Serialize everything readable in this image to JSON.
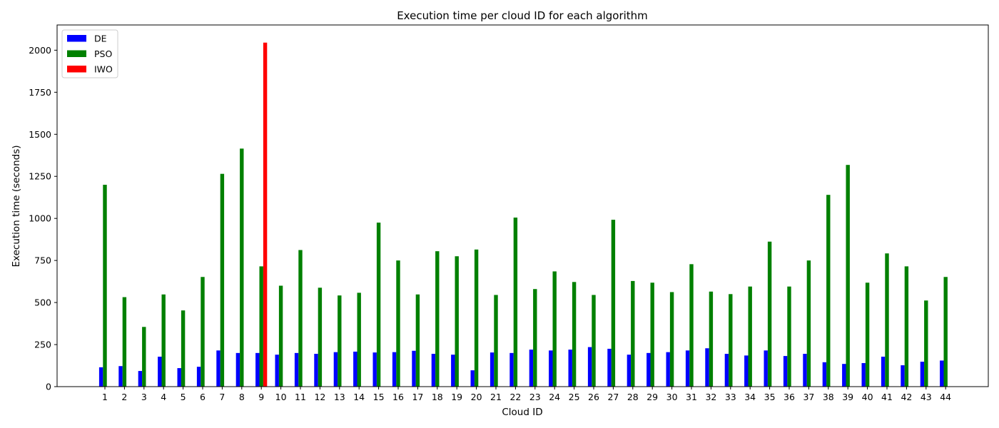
{
  "chart_data": {
    "type": "bar",
    "title": "Execution time per cloud ID for each algorithm",
    "xlabel": "Cloud ID",
    "ylabel": "Execution time (seconds)",
    "ylim": [
      0,
      2150
    ],
    "yticks": [
      0,
      250,
      500,
      750,
      1000,
      1250,
      1500,
      1750,
      2000
    ],
    "categories": [
      "1",
      "2",
      "3",
      "4",
      "5",
      "6",
      "7",
      "8",
      "9",
      "10",
      "11",
      "12",
      "13",
      "14",
      "15",
      "16",
      "17",
      "18",
      "19",
      "20",
      "21",
      "22",
      "23",
      "24",
      "25",
      "26",
      "27",
      "28",
      "29",
      "30",
      "31",
      "32",
      "33",
      "34",
      "35",
      "36",
      "37",
      "38",
      "39",
      "40",
      "41",
      "42",
      "43",
      "44"
    ],
    "legend_position": "upper-left",
    "grid": false,
    "series": [
      {
        "name": "DE",
        "color": "#0000ff",
        "values": [
          115,
          122,
          93,
          178,
          110,
          118,
          215,
          200,
          200,
          190,
          200,
          195,
          205,
          208,
          203,
          205,
          213,
          195,
          190,
          97,
          203,
          200,
          220,
          215,
          220,
          235,
          225,
          190,
          200,
          205,
          215,
          228,
          195,
          185,
          215,
          182,
          195,
          145,
          135,
          140,
          178,
          127,
          148,
          155
        ]
      },
      {
        "name": "PSO",
        "color": "#008000",
        "values": [
          1200,
          532,
          355,
          548,
          453,
          652,
          1265,
          1415,
          715,
          600,
          812,
          588,
          542,
          558,
          975,
          750,
          548,
          805,
          775,
          815,
          545,
          1005,
          580,
          685,
          622,
          545,
          992,
          628,
          618,
          562,
          728,
          565,
          550,
          595,
          862,
          595,
          750,
          1140,
          1318,
          618,
          792,
          715,
          512,
          652
        ]
      },
      {
        "name": "IWO",
        "color": "#ff0000",
        "values": [
          null,
          null,
          null,
          null,
          null,
          null,
          null,
          null,
          2045,
          null,
          null,
          null,
          null,
          null,
          null,
          null,
          null,
          null,
          null,
          null,
          null,
          null,
          null,
          null,
          null,
          null,
          null,
          null,
          null,
          null,
          null,
          null,
          null,
          null,
          null,
          null,
          null,
          null,
          null,
          null,
          null,
          null,
          null,
          null
        ]
      }
    ]
  }
}
